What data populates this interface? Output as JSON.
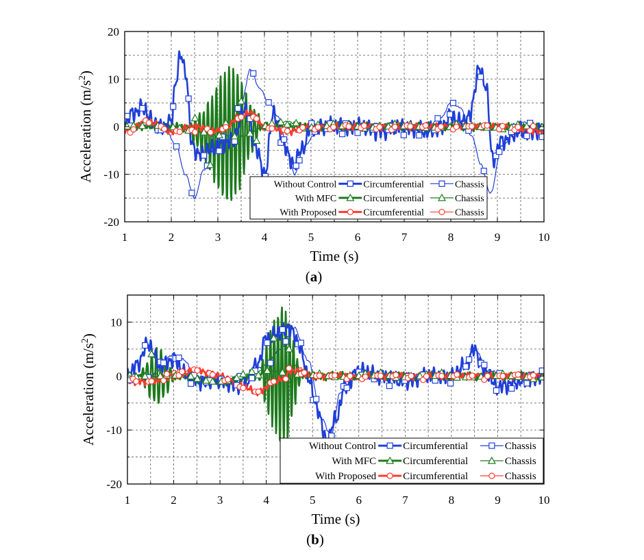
{
  "figure": {
    "panels": [
      "(a)",
      "(b)"
    ]
  },
  "colors": {
    "without_control": "#1f3fd8",
    "with_mfc": "#1e7a1e",
    "with_proposed": "#ff3b2f",
    "grid": "#555555"
  },
  "chart_data": [
    {
      "type": "line",
      "caption": "(a)",
      "xlabel": "Time (s)",
      "ylabel": "Acceleration (m/s2)",
      "xlim": [
        1,
        10
      ],
      "ylim": [
        -20,
        20
      ],
      "xticks": [
        1,
        2,
        3,
        4,
        5,
        6,
        7,
        8,
        9,
        10
      ],
      "yticks": [
        -20,
        -10,
        0,
        10,
        20
      ],
      "grid": true,
      "legend": {
        "placement": "bottom-right",
        "rows": [
          {
            "group": "Without Control",
            "items": [
              "Circumferential",
              "Chassis"
            ]
          },
          {
            "group": "With MFC",
            "items": [
              "Circumferential",
              "Chassis"
            ]
          },
          {
            "group": "With Proposed",
            "items": [
              "Circumferential",
              "Chassis"
            ]
          }
        ]
      },
      "series": [
        {
          "name": "Without Control Circumferential",
          "color": "#1f3fd8",
          "marker": "square",
          "width": "thick",
          "noise": 2.2,
          "x": [
            1,
            1.2,
            1.4,
            1.6,
            1.8,
            2.0,
            2.1,
            2.2,
            2.3,
            2.45,
            2.6,
            2.8,
            3.0,
            3.3,
            3.6,
            3.8,
            4.0,
            4.2,
            4.4,
            4.6,
            4.8,
            5.0,
            5.5,
            6,
            6.5,
            7,
            7.5,
            7.8,
            8.0,
            8.2,
            8.4,
            8.6,
            8.75,
            8.9,
            9.1,
            9.5,
            10
          ],
          "y": [
            1,
            3,
            4,
            1,
            0,
            1,
            10,
            15,
            12,
            -4,
            -6,
            -5,
            -4,
            -3,
            4,
            -4,
            -10,
            3,
            -3,
            -8,
            -5,
            0,
            0,
            0,
            -1,
            0,
            -1,
            0,
            2,
            1,
            2,
            12,
            9,
            -7,
            -3,
            -1,
            -1
          ]
        },
        {
          "name": "Without Control Chassis",
          "color": "#1f3fd8",
          "marker": "square",
          "width": "thin",
          "noise": 0.2,
          "x": [
            1,
            1.5,
            1.9,
            2.1,
            2.3,
            2.5,
            2.7,
            3.0,
            3.3,
            3.5,
            3.7,
            3.9,
            4.1,
            4.3,
            4.5,
            4.65,
            4.85,
            5.2,
            5.6,
            6,
            6.5,
            7,
            7.5,
            7.8,
            8.0,
            8.2,
            8.45,
            8.65,
            8.85,
            9.1,
            9.5,
            10
          ],
          "y": [
            0,
            1,
            -1,
            -4,
            -10,
            -15,
            -9,
            -3,
            1,
            5,
            12,
            8,
            5,
            2,
            -5,
            -10,
            -4,
            0,
            1,
            0,
            0,
            0,
            0,
            2,
            5,
            4,
            -2,
            -8,
            -14,
            -4,
            1,
            0
          ]
        },
        {
          "name": "With MFC Circumferential",
          "color": "#1e7a1e",
          "marker": "triangle",
          "width": "thick",
          "noise": 1.0,
          "osc": {
            "start": 2.4,
            "end": 3.9,
            "freq": 11,
            "amp": [
              1,
              4,
              8,
              12,
              14,
              12,
              6,
              2
            ]
          },
          "x": [
            1,
            2,
            3,
            4,
            5,
            6,
            7,
            8,
            9,
            10
          ],
          "y": [
            0,
            0,
            -2,
            0,
            0,
            0,
            0,
            0,
            0,
            0
          ]
        },
        {
          "name": "With MFC Chassis",
          "color": "#1e7a1e",
          "marker": "triangle",
          "width": "thin",
          "noise": 0.3,
          "x": [
            1,
            2,
            2.5,
            3,
            3.5,
            4,
            4.5,
            5,
            6,
            7,
            8,
            9,
            10
          ],
          "y": [
            0,
            0,
            -1,
            -2,
            -2,
            0,
            1,
            0,
            0,
            0,
            0,
            0,
            0
          ]
        },
        {
          "name": "With Proposed Circumferential",
          "color": "#ff3b2f",
          "marker": "circle",
          "width": "thick",
          "noise": 0.9,
          "x": [
            1,
            1.5,
            2,
            2.5,
            3,
            3.5,
            3.7,
            4.0,
            4.5,
            5,
            6,
            7,
            8,
            9,
            10
          ],
          "y": [
            -1,
            1,
            -1,
            0,
            -1,
            2,
            3,
            0,
            -1,
            0,
            0,
            0,
            0,
            0,
            -1
          ]
        },
        {
          "name": "With Proposed Chassis",
          "color": "#ff3b2f",
          "marker": "circle",
          "width": "thin",
          "noise": 0.3,
          "x": [
            1,
            1.5,
            2,
            2.5,
            3,
            3.5,
            3.7,
            4.0,
            4.5,
            5,
            6,
            7,
            8,
            9,
            10
          ],
          "y": [
            -1,
            1,
            -1,
            -1,
            -1,
            2,
            3,
            0,
            -1,
            0,
            0,
            0,
            0,
            0,
            0
          ]
        }
      ]
    },
    {
      "type": "line",
      "caption": "(b)",
      "xlabel": "Time (s)",
      "ylabel": "Acceleration (m/s2)",
      "xlim": [
        1,
        10
      ],
      "ylim": [
        -20,
        15
      ],
      "xticks": [
        1,
        2,
        3,
        4,
        5,
        6,
        7,
        8,
        9,
        10
      ],
      "yticks": [
        -20,
        -10,
        0,
        10
      ],
      "grid": true,
      "legend": {
        "placement": "bottom-right",
        "rows": [
          {
            "group": "Without Control",
            "items": [
              "Circumferential",
              "Chassis"
            ]
          },
          {
            "group": "With MFC",
            "items": [
              "Circumferential",
              "Chassis"
            ]
          },
          {
            "group": "With Proposed",
            "items": [
              "Circumferential",
              "Chassis"
            ]
          }
        ]
      },
      "series": [
        {
          "name": "Without Control Circumferential",
          "color": "#1f3fd8",
          "marker": "square",
          "width": "thick",
          "noise": 1.8,
          "x": [
            1,
            1.2,
            1.45,
            1.7,
            2.0,
            2.3,
            2.6,
            3.0,
            3.5,
            3.8,
            4.0,
            4.3,
            4.5,
            4.7,
            4.9,
            5.1,
            5.3,
            5.5,
            5.7,
            6,
            6.5,
            7,
            7.5,
            8,
            8.3,
            8.5,
            8.7,
            9,
            9.5,
            10
          ],
          "y": [
            0,
            2,
            6,
            2,
            3,
            0,
            -1,
            -1,
            -2,
            2,
            7,
            8,
            9,
            6,
            0,
            -6,
            -12,
            -8,
            -2,
            1,
            0,
            -1,
            0,
            0,
            2,
            5,
            1,
            -2,
            -1,
            0
          ]
        },
        {
          "name": "Without Control Chassis",
          "color": "#1f3fd8",
          "marker": "square",
          "width": "thin",
          "noise": 0.3,
          "x": [
            1,
            1.5,
            2.0,
            2.2,
            2.5,
            3,
            3.5,
            4.0,
            4.3,
            4.6,
            4.9,
            5.2,
            5.4,
            5.6,
            6,
            7,
            8,
            8.3,
            8.5,
            8.8,
            9.2,
            10
          ],
          "y": [
            0,
            0,
            4,
            3,
            0,
            -1,
            0,
            2,
            5,
            9,
            3,
            -8,
            -11,
            -3,
            0,
            0,
            0,
            2,
            5,
            1,
            0,
            0
          ]
        },
        {
          "name": "With MFC Circumferential",
          "color": "#1e7a1e",
          "marker": "triangle",
          "width": "thick",
          "noise": 0.9,
          "osc": {
            "start": 3.9,
            "end": 4.75,
            "freq": 12,
            "amp": [
              2,
              7,
              11,
              13,
              11,
              6,
              1
            ]
          },
          "osc2": {
            "start": 1.3,
            "end": 2.0,
            "freq": 10,
            "amp": [
              1,
              4,
              6,
              4,
              1
            ]
          },
          "x": [
            1,
            2,
            3,
            4,
            5,
            6,
            7,
            8,
            9,
            10
          ],
          "y": [
            0,
            0,
            -1,
            0,
            0,
            0,
            0,
            0,
            0,
            0
          ]
        },
        {
          "name": "With MFC Chassis",
          "color": "#1e7a1e",
          "marker": "triangle",
          "width": "thin",
          "noise": 0.3,
          "x": [
            1,
            2,
            3,
            4,
            5,
            6,
            7,
            8,
            9,
            10
          ],
          "y": [
            0,
            0,
            -1,
            1,
            0,
            0,
            0,
            0,
            0,
            0
          ]
        },
        {
          "name": "With Proposed Circumferential",
          "color": "#ff3b2f",
          "marker": "circle",
          "width": "thick",
          "noise": 0.8,
          "x": [
            1,
            1.5,
            2,
            2.5,
            3,
            3.5,
            3.8,
            4.2,
            4.6,
            5,
            6,
            7,
            8,
            9,
            10
          ],
          "y": [
            -1,
            -1,
            0,
            1,
            0,
            -2,
            -3,
            -1,
            1,
            0,
            0,
            0,
            0,
            0,
            0
          ]
        },
        {
          "name": "With Proposed Chassis",
          "color": "#ff3b2f",
          "marker": "circle",
          "width": "thin",
          "noise": 0.3,
          "x": [
            1,
            1.5,
            2,
            2.5,
            3,
            3.5,
            3.8,
            4.2,
            4.6,
            5,
            6,
            7,
            8,
            9,
            10
          ],
          "y": [
            -1,
            -1,
            1,
            1,
            0,
            -2,
            -3,
            -1,
            2,
            0,
            0,
            0,
            0,
            0,
            0
          ]
        }
      ]
    }
  ]
}
